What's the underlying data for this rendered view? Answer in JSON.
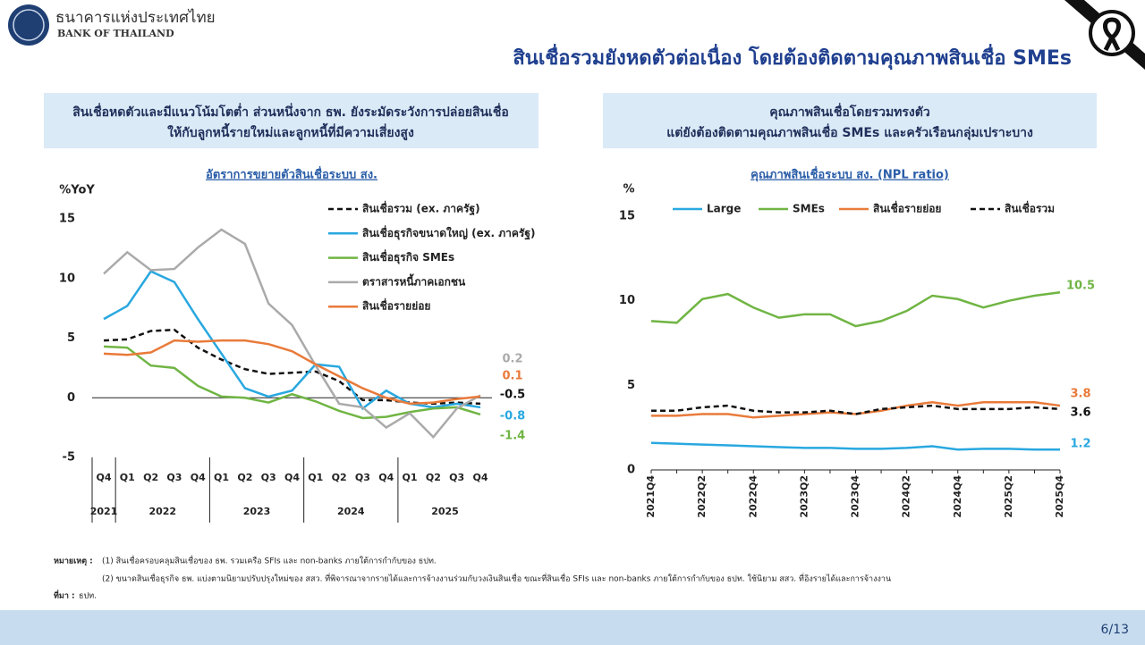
{
  "header": {
    "org_name_th": "ธนาคารแห่งประเทศไทย",
    "org_name_en": "BANK OF THAILAND",
    "title": "สินเชื่อรวมยังหดตัวต่อเนื่อง โดยต้องติดตามคุณภาพสินเชื่อ SMEs"
  },
  "panels": [
    {
      "lines": [
        "สินเชื่อหดตัวและมีแนวโน้มโตต่ำ ส่วนหนึ่งจาก ธพ. ยังระมัดระวังการปล่อยสินเชื่อ",
        "ให้กับลูกหนี้รายใหม่และลูกหนี้ที่มีความเสี่ยงสูง"
      ]
    },
    {
      "lines": [
        "คุณภาพสินเชื่อโดยรวมทรงตัว",
        "แต่ยังต้องติดตามคุณภาพสินเชื่อ SMEs และครัวเรือนกลุ่มเปราะบาง"
      ]
    }
  ],
  "chart_data": [
    {
      "type": "line",
      "title": "อัตราการขยายตัวสินเชื่อระบบ สง.",
      "y_label": "%YoY",
      "categories": [
        "Q4",
        "Q1",
        "Q2",
        "Q3",
        "Q4",
        "Q1",
        "Q2",
        "Q3",
        "Q4",
        "Q1",
        "Q2",
        "Q3",
        "Q4",
        "Q1",
        "Q2",
        "Q3",
        "Q4"
      ],
      "years": [
        "2021",
        "2022",
        "2023",
        "2024",
        "2025"
      ],
      "ylim": [
        -5,
        15
      ],
      "yticks": [
        -5,
        0,
        5,
        10,
        15
      ],
      "legend": "top-right",
      "series": [
        {
          "name": "สินเชื่อรวม (ex. ภาครัฐ)",
          "color": "#111111",
          "style": "dashed",
          "values": [
            4.8,
            4.9,
            5.6,
            5.7,
            4.2,
            3.2,
            2.4,
            2.0,
            2.1,
            2.2,
            1.4,
            -0.2,
            -0.2,
            -0.4,
            -0.5,
            -0.4,
            -0.5
          ]
        },
        {
          "name": "สินเชื่อธุรกิจขนาดใหญ่ (ex. ภาครัฐ)",
          "color": "#29a8e0",
          "style": "solid",
          "values": [
            6.6,
            7.7,
            10.6,
            9.7,
            6.6,
            3.7,
            0.8,
            0.1,
            0.6,
            2.8,
            2.6,
            -0.9,
            0.6,
            -0.5,
            -0.8,
            -0.5,
            -0.8
          ]
        },
        {
          "name": "สินเชื่อธุรกิจ SMEs",
          "color": "#70b544",
          "style": "solid",
          "values": [
            4.3,
            4.2,
            2.7,
            2.5,
            1.0,
            0.1,
            0.0,
            -0.4,
            0.3,
            -0.3,
            -1.1,
            -1.7,
            -1.6,
            -1.2,
            -0.9,
            -0.8,
            -1.4
          ]
        },
        {
          "name": "ตราสารหนี้ภาคเอกชน",
          "color": "#aaaaaa",
          "style": "solid",
          "values": [
            10.4,
            12.2,
            10.7,
            10.8,
            12.6,
            14.1,
            12.9,
            7.9,
            6.1,
            2.7,
            -0.5,
            -0.8,
            -2.5,
            -1.3,
            -3.3,
            -0.9,
            0.2
          ]
        },
        {
          "name": "สินเชื่อรายย่อย",
          "color": "#e97a3a",
          "style": "solid",
          "values": [
            3.7,
            3.6,
            3.8,
            4.8,
            4.7,
            4.8,
            4.8,
            4.5,
            3.9,
            2.8,
            1.8,
            0.8,
            0.0,
            -0.5,
            -0.4,
            -0.1,
            0.1
          ]
        }
      ]
    },
    {
      "type": "line",
      "title": "คุณภาพสินเชื่อระบบ สง. (NPL ratio)",
      "y_label": "%",
      "categories": [
        "2021Q4",
        null,
        "2022Q2",
        null,
        "2022Q4",
        null,
        "2023Q2",
        null,
        "2023Q4",
        null,
        "2024Q2",
        null,
        "2024Q4",
        null,
        "2025Q2",
        null,
        "2025Q4"
      ],
      "ylim": [
        0,
        15
      ],
      "yticks": [
        0,
        5,
        10,
        15
      ],
      "legend": "top",
      "series": [
        {
          "name": "Large",
          "color": "#29a8e0",
          "style": "solid",
          "values": [
            1.6,
            1.55,
            1.5,
            1.45,
            1.4,
            1.35,
            1.3,
            1.3,
            1.25,
            1.25,
            1.3,
            1.4,
            1.2,
            1.25,
            1.25,
            1.2,
            1.2
          ]
        },
        {
          "name": "SMEs",
          "color": "#70b544",
          "style": "solid",
          "values": [
            8.8,
            8.7,
            10.1,
            10.4,
            9.6,
            9.0,
            9.2,
            9.2,
            8.5,
            8.8,
            9.4,
            10.3,
            10.1,
            9.6,
            10.0,
            10.3,
            10.5
          ]
        },
        {
          "name": "สินเชื่อรายย่อย",
          "color": "#e97a3a",
          "style": "solid",
          "values": [
            3.2,
            3.2,
            3.3,
            3.3,
            3.1,
            3.2,
            3.3,
            3.4,
            3.3,
            3.5,
            3.8,
            4.0,
            3.8,
            4.0,
            4.0,
            4.0,
            3.8
          ]
        },
        {
          "name": "สินเชื่อรวม",
          "color": "#111111",
          "style": "dashed",
          "values": [
            3.5,
            3.5,
            3.7,
            3.8,
            3.5,
            3.4,
            3.4,
            3.5,
            3.3,
            3.6,
            3.7,
            3.8,
            3.6,
            3.6,
            3.6,
            3.7,
            3.6
          ]
        }
      ]
    }
  ],
  "notes": {
    "label": "หมายเหตุ :",
    "lines": [
      "(1) สินเชื่อครอบคลุมสินเชื่อของ ธพ. รวมเครือ SFIs และ non-banks ภายใต้การกำกับของ ธปท.",
      "(2) ขนาดสินเชื่อธุรกิจ ธพ. แบ่งตามนิยามปรับปรุงใหม่ของ สสว. ที่พิจารณาจากรายได้และการจ้างงานร่วมกับวงเงินสินเชื่อ ขณะที่สินเชื่อ SFIs และ non-banks ภายใต้การกำกับของ ธปท. ใช้นิยาม สสว. ที่อิงรายได้และการจ้างงาน"
    ],
    "source_label": "ที่มา :",
    "source": "ธปท."
  },
  "page_number": "6/13"
}
